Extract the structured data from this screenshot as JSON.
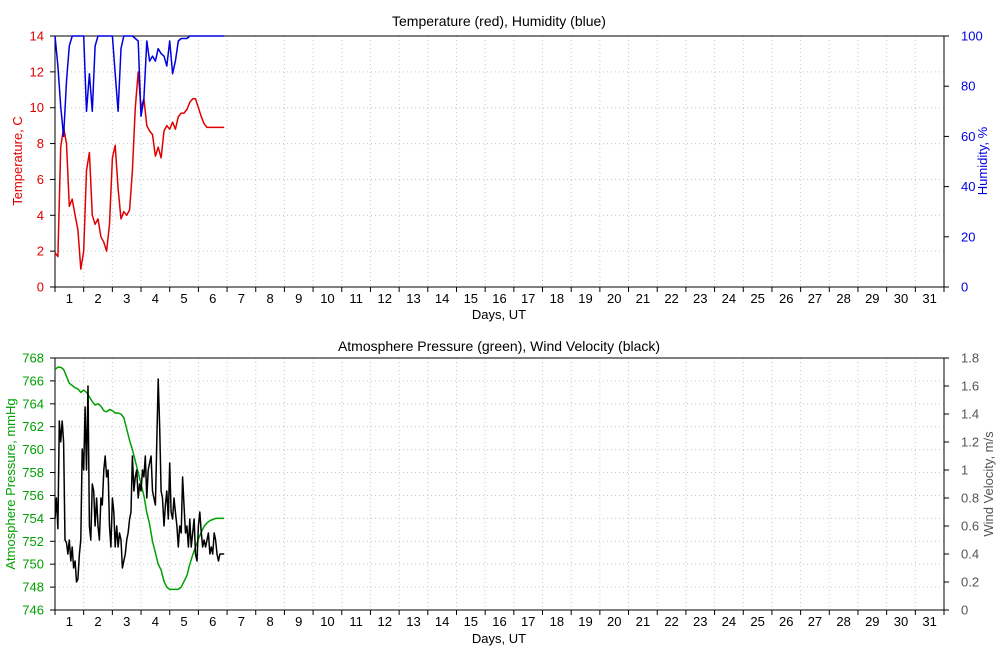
{
  "colors": {
    "temperature": "#e00000",
    "humidity": "#0000e0",
    "pressure": "#00a000",
    "wind": "#000000",
    "wind_axis": "#555555",
    "grid": "#c8c8c8"
  },
  "chart_data": [
    {
      "type": "line",
      "title": "Temperature (red), Humidity (blue)",
      "xlabel": "Days, UT",
      "ylabel": "Temperature, C",
      "y2label": "Humidity, %",
      "xlim": [
        0.5,
        31.5
      ],
      "ylim": [
        0,
        14
      ],
      "y2lim": [
        0,
        100
      ],
      "x_ticks": [
        "1",
        "2",
        "3",
        "4",
        "5",
        "6",
        "7",
        "8",
        "9",
        "10",
        "11",
        "12",
        "13",
        "14",
        "15",
        "16",
        "17",
        "18",
        "19",
        "20",
        "21",
        "22",
        "23",
        "24",
        "25",
        "26",
        "27",
        "28",
        "29",
        "30",
        "31"
      ],
      "y_ticks": [
        "0",
        "2",
        "4",
        "6",
        "8",
        "10",
        "12",
        "14"
      ],
      "y2_ticks": [
        "0",
        "20",
        "40",
        "60",
        "80",
        "100"
      ],
      "grid": true,
      "series": [
        {
          "name": "Temperature",
          "axis": "left",
          "x": [
            0.5,
            0.6,
            0.7,
            0.8,
            0.9,
            1.0,
            1.1,
            1.2,
            1.3,
            1.4,
            1.5,
            1.6,
            1.7,
            1.8,
            1.9,
            2.0,
            2.1,
            2.2,
            2.3,
            2.4,
            2.5,
            2.6,
            2.7,
            2.8,
            2.9,
            3.0,
            3.1,
            3.2,
            3.3,
            3.4,
            3.5,
            3.6,
            3.7,
            3.8,
            3.9,
            4.0,
            4.1,
            4.2,
            4.3,
            4.4,
            4.5,
            4.6,
            4.7,
            4.8,
            4.9,
            5.0,
            5.1,
            5.2,
            5.3,
            5.4,
            5.5,
            5.6,
            5.7,
            5.8,
            5.9,
            6.0,
            6.1,
            6.2,
            6.3,
            6.4
          ],
          "values": [
            1.9,
            1.7,
            7.8,
            8.9,
            8.0,
            4.5,
            4.9,
            4.0,
            3.2,
            1.0,
            2.0,
            6.5,
            7.5,
            4.0,
            3.5,
            3.8,
            2.8,
            2.5,
            2.0,
            3.5,
            7.2,
            7.9,
            5.5,
            3.8,
            4.2,
            4.0,
            4.3,
            6.5,
            10.0,
            12.0,
            10.0,
            10.5,
            9.0,
            8.7,
            8.5,
            7.3,
            7.8,
            7.2,
            8.7,
            9.0,
            8.8,
            9.2,
            8.8,
            9.5,
            9.7,
            9.7,
            9.9,
            10.3,
            10.5,
            10.5,
            10.0,
            9.5,
            9.1,
            8.9,
            8.9,
            8.9,
            8.9,
            8.9,
            8.9,
            8.9
          ]
        },
        {
          "name": "Humidity",
          "axis": "right",
          "x": [
            0.5,
            0.6,
            0.7,
            0.8,
            0.9,
            1.0,
            1.1,
            1.3,
            1.5,
            1.6,
            1.7,
            1.8,
            1.9,
            2.0,
            2.2,
            2.4,
            2.5,
            2.6,
            2.7,
            2.8,
            2.9,
            3.0,
            3.2,
            3.4,
            3.5,
            3.6,
            3.7,
            3.8,
            3.9,
            4.0,
            4.1,
            4.2,
            4.3,
            4.4,
            4.5,
            4.6,
            4.7,
            4.8,
            4.9,
            5.0,
            5.1,
            5.2,
            5.3,
            5.5,
            5.7,
            6.0,
            6.2,
            6.4
          ],
          "values": [
            100,
            88,
            72,
            60,
            82,
            96,
            100,
            100,
            100,
            70,
            85,
            70,
            96,
            100,
            100,
            100,
            100,
            85,
            70,
            95,
            100,
            100,
            100,
            98,
            68,
            75,
            98,
            90,
            92,
            90,
            95,
            93,
            92,
            88,
            98,
            85,
            90,
            98,
            99,
            99,
            99,
            100,
            100,
            100,
            100,
            100,
            100,
            100
          ]
        }
      ]
    },
    {
      "type": "line",
      "title": "Atmosphere Pressure (green), Wind Velocity (black)",
      "xlabel": "Days, UT",
      "ylabel": "Atmosphere Pressure, mmHg",
      "y2label": "Wind Velocity, m/s",
      "xlim": [
        0.5,
        31.5
      ],
      "ylim": [
        746,
        768
      ],
      "y2lim": [
        0,
        1.8
      ],
      "x_ticks": [
        "1",
        "2",
        "3",
        "4",
        "5",
        "6",
        "7",
        "8",
        "9",
        "10",
        "11",
        "12",
        "13",
        "14",
        "15",
        "16",
        "17",
        "18",
        "19",
        "20",
        "21",
        "22",
        "23",
        "24",
        "25",
        "26",
        "27",
        "28",
        "29",
        "30",
        "31"
      ],
      "y_ticks": [
        "746",
        "748",
        "750",
        "752",
        "754",
        "756",
        "758",
        "760",
        "762",
        "764",
        "766",
        "768"
      ],
      "y2_ticks": [
        "0",
        "0.2",
        "0.4",
        "0.6",
        "0.8",
        "1",
        "1.2",
        "1.4",
        "1.6",
        "1.8"
      ],
      "grid": true,
      "series": [
        {
          "name": "Atmosphere Pressure",
          "axis": "left",
          "x": [
            0.5,
            0.6,
            0.7,
            0.8,
            0.9,
            1.0,
            1.1,
            1.2,
            1.3,
            1.4,
            1.5,
            1.6,
            1.7,
            1.8,
            1.9,
            2.0,
            2.1,
            2.2,
            2.3,
            2.4,
            2.5,
            2.6,
            2.7,
            2.8,
            2.9,
            3.0,
            3.1,
            3.2,
            3.3,
            3.4,
            3.5,
            3.6,
            3.7,
            3.8,
            3.9,
            4.0,
            4.1,
            4.2,
            4.3,
            4.4,
            4.5,
            4.6,
            4.7,
            4.8,
            4.9,
            5.0,
            5.1,
            5.2,
            5.3,
            5.4,
            5.5,
            5.6,
            5.7,
            5.8,
            5.9,
            6.0,
            6.1,
            6.2,
            6.3,
            6.4
          ],
          "values": [
            767.0,
            767.2,
            767.2,
            767.0,
            766.4,
            765.8,
            765.6,
            765.4,
            765.3,
            765.0,
            765.2,
            765.0,
            764.6,
            764.2,
            763.9,
            764.0,
            763.8,
            763.4,
            763.3,
            763.5,
            763.4,
            763.2,
            763.2,
            763.1,
            762.8,
            761.8,
            760.8,
            760.0,
            759.0,
            758.0,
            757.0,
            756.0,
            754.5,
            753.5,
            752.0,
            751.0,
            750.0,
            749.5,
            748.5,
            748.0,
            747.8,
            747.8,
            747.8,
            747.8,
            748.0,
            748.5,
            749.0,
            750.0,
            750.8,
            751.5,
            752.2,
            752.8,
            753.3,
            753.6,
            753.8,
            753.9,
            754.0,
            754.0,
            754.0,
            754.0
          ]
        },
        {
          "name": "Wind Velocity",
          "axis": "right",
          "x": [
            0.5,
            0.55,
            0.6,
            0.65,
            0.7,
            0.75,
            0.8,
            0.85,
            0.9,
            0.95,
            1.0,
            1.05,
            1.1,
            1.15,
            1.2,
            1.25,
            1.3,
            1.35,
            1.4,
            1.45,
            1.5,
            1.55,
            1.6,
            1.65,
            1.7,
            1.75,
            1.8,
            1.85,
            1.9,
            1.95,
            2.0,
            2.05,
            2.1,
            2.15,
            2.2,
            2.25,
            2.3,
            2.35,
            2.4,
            2.45,
            2.5,
            2.55,
            2.6,
            2.65,
            2.7,
            2.75,
            2.8,
            2.85,
            2.9,
            2.95,
            3.0,
            3.05,
            3.1,
            3.15,
            3.2,
            3.25,
            3.3,
            3.35,
            3.4,
            3.45,
            3.5,
            3.55,
            3.6,
            3.65,
            3.7,
            3.75,
            3.8,
            3.85,
            3.9,
            3.95,
            4.0,
            4.05,
            4.1,
            4.15,
            4.2,
            4.25,
            4.3,
            4.35,
            4.4,
            4.45,
            4.5,
            4.55,
            4.6,
            4.65,
            4.7,
            4.75,
            4.8,
            4.85,
            4.9,
            4.95,
            5.0,
            5.05,
            5.1,
            5.15,
            5.2,
            5.25,
            5.3,
            5.35,
            5.4,
            5.45,
            5.5,
            5.55,
            5.6,
            5.65,
            5.7,
            5.75,
            5.8,
            5.85,
            5.9,
            5.95,
            6.0,
            6.05,
            6.1,
            6.15,
            6.2,
            6.25,
            6.3,
            6.35,
            6.4
          ],
          "values": [
            0.65,
            0.8,
            0.58,
            1.35,
            1.2,
            1.35,
            1.2,
            0.5,
            0.48,
            0.4,
            0.5,
            0.35,
            0.45,
            0.3,
            0.35,
            0.2,
            0.22,
            0.4,
            0.5,
            1.15,
            1.0,
            1.45,
            1.0,
            1.6,
            0.6,
            0.5,
            0.9,
            0.85,
            0.6,
            0.8,
            0.6,
            0.5,
            0.8,
            0.75,
            1.0,
            1.1,
            0.95,
            1.0,
            0.6,
            0.45,
            0.8,
            0.7,
            0.45,
            0.6,
            0.45,
            0.55,
            0.5,
            0.3,
            0.35,
            0.4,
            0.5,
            0.55,
            0.65,
            0.7,
            1.1,
            0.85,
            0.95,
            1.0,
            0.8,
            0.9,
            0.85,
            1.0,
            0.95,
            1.1,
            0.8,
            1.0,
            1.05,
            1.1,
            0.85,
            0.8,
            0.75,
            1.2,
            1.65,
            1.3,
            0.85,
            0.8,
            0.6,
            0.75,
            0.85,
            0.65,
            1.05,
            0.7,
            0.65,
            0.8,
            0.7,
            0.6,
            0.45,
            0.6,
            0.55,
            0.95,
            0.75,
            0.55,
            0.6,
            0.45,
            0.65,
            0.45,
            0.55,
            0.65,
            0.4,
            0.35,
            0.6,
            0.7,
            0.55,
            0.45,
            0.5,
            0.45,
            0.5,
            0.55,
            0.4,
            0.45,
            0.4,
            0.55,
            0.5,
            0.4,
            0.35,
            0.4,
            0.4,
            0.4,
            0.4
          ]
        }
      ]
    }
  ]
}
